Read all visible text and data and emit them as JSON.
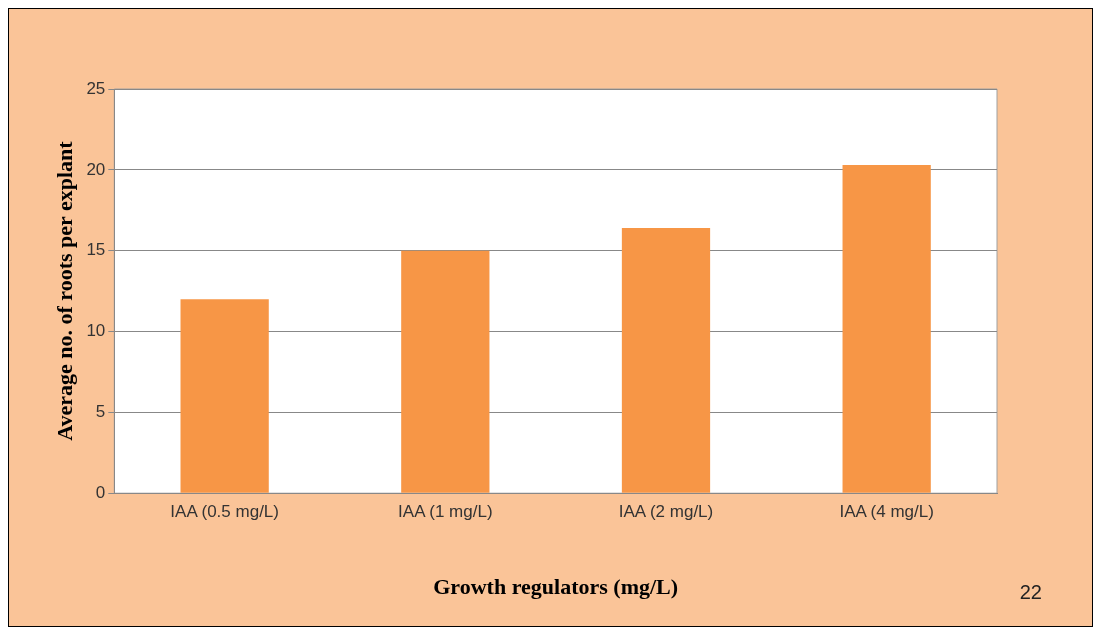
{
  "chart_data": {
    "type": "bar",
    "xlabel": "Growth regulators (mg/L)",
    "ylabel": "Average no. of roots per explant",
    "categories": [
      "IAA (0.5 mg/L)",
      "IAA (1 mg/L)",
      "IAA (2 mg/L)",
      "IAA (4 mg/L)"
    ],
    "values": [
      12,
      15,
      16.4,
      20.3
    ],
    "color": "#f79646",
    "ylim": [
      0,
      25
    ],
    "yticks": [
      0,
      5,
      10,
      15,
      20,
      25
    ],
    "grid": "y",
    "legend": false,
    "annotations": [
      "22"
    ]
  }
}
